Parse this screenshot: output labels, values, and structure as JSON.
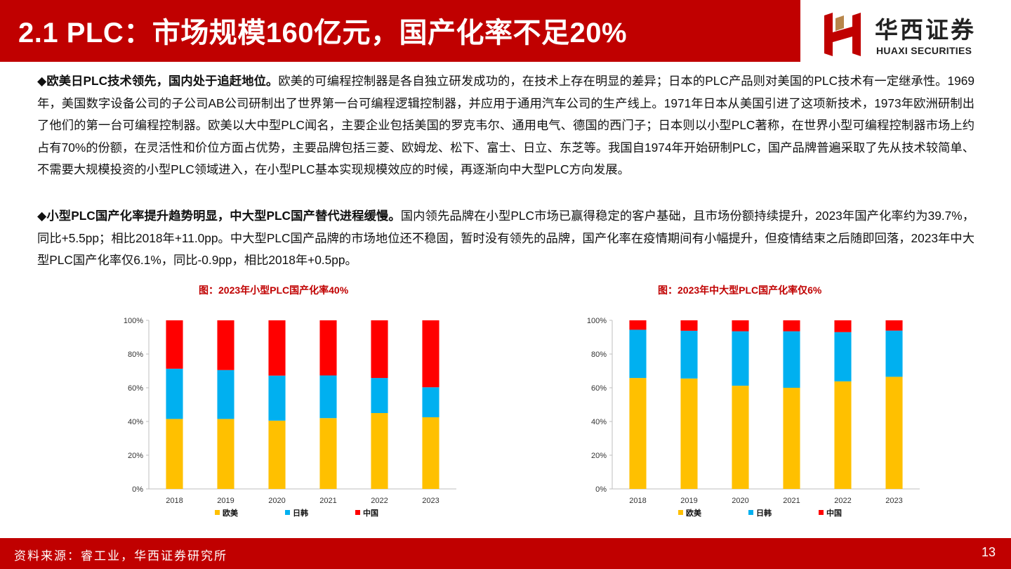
{
  "header": {
    "title": "2.1 PLC：市场规模160亿元，国产化率不足20%"
  },
  "logo": {
    "name": "华西证券",
    "sub": "HUAXI SECURITIES"
  },
  "paragraphs": [
    {
      "lead": "◆欧美日PLC技术领先，国内处于追赶地位。",
      "body": "欧美的可编程控制器是各自独立研发成功的，在技术上存在明显的差异；日本的PLC产品则对美国的PLC技术有一定继承性。1969年，美国数字设备公司的子公司AB公司研制出了世界第一台可编程逻辑控制器，并应用于通用汽车公司的生产线上。1971年日本从美国引进了这项新技术，1973年欧洲研制出了他们的第一台可编程控制器。欧美以大中型PLC闻名，主要企业包括美国的罗克韦尔、通用电气、德国的西门子；日本则以小型PLC著称，在世界小型可编程控制器市场上约占有70%的份额，在灵活性和价位方面占优势，主要品牌包括三菱、欧姆龙、松下、富士、日立、东芝等。我国自1974年开始研制PLC，国产品牌普遍采取了先从技术较简单、不需要大规模投资的小型PLC领域进入，在小型PLC基本实现规模效应的时候，再逐渐向中大型PLC方向发展。"
    },
    {
      "lead": "◆小型PLC国产化率提升趋势明显，中大型PLC国产替代进程缓慢。",
      "body": "国内领先品牌在小型PLC市场已赢得稳定的客户基础，且市场份额持续提升，2023年国产化率约为39.7%，同比+5.5pp；相比2018年+11.0pp。中大型PLC国产品牌的市场地位还不稳固，暂时没有领先的品牌，国产化率在疫情期间有小幅提升，但疫情结束之后随即回落，2023年中大型PLC国产化率仅6.1%，同比-0.9pp，相比2018年+0.5pp。"
    }
  ],
  "chart_data": [
    {
      "type": "bar",
      "stacked": true,
      "title": "图：2023年小型PLC国产化率40%",
      "categories": [
        "2018",
        "2019",
        "2020",
        "2021",
        "2022",
        "2023"
      ],
      "series": [
        {
          "name": "欧美",
          "color": "#ffc000",
          "values": [
            41.5,
            41.5,
            40.5,
            42.0,
            45.0,
            42.5
          ]
        },
        {
          "name": "日韩",
          "color": "#00b0f0",
          "values": [
            29.8,
            29.0,
            26.7,
            25.3,
            20.8,
            17.8
          ]
        },
        {
          "name": "中国",
          "color": "#ff0000",
          "values": [
            28.7,
            29.5,
            32.8,
            32.7,
            34.2,
            39.7
          ]
        }
      ],
      "ylim": [
        0,
        100
      ],
      "yticks": [
        "0%",
        "20%",
        "40%",
        "60%",
        "80%",
        "100%"
      ],
      "grid": false,
      "legend": "bottom"
    },
    {
      "type": "bar",
      "stacked": true,
      "title": "图：2023年中大型PLC国产化率仅6%",
      "categories": [
        "2018",
        "2019",
        "2020",
        "2021",
        "2022",
        "2023"
      ],
      "series": [
        {
          "name": "欧美",
          "color": "#ffc000",
          "values": [
            65.8,
            65.5,
            61.2,
            60.0,
            63.8,
            66.5
          ]
        },
        {
          "name": "日韩",
          "color": "#00b0f0",
          "values": [
            28.6,
            28.3,
            32.3,
            33.5,
            29.2,
            27.4
          ]
        },
        {
          "name": "中国",
          "color": "#ff0000",
          "values": [
            5.6,
            6.2,
            6.5,
            6.5,
            7.0,
            6.1
          ]
        }
      ],
      "ylim": [
        0,
        100
      ],
      "yticks": [
        "0%",
        "20%",
        "40%",
        "60%",
        "80%",
        "100%"
      ],
      "grid": false,
      "legend": "bottom"
    }
  ],
  "footer": {
    "source": "资料来源：睿工业，华西证券研究所",
    "page": "13"
  }
}
